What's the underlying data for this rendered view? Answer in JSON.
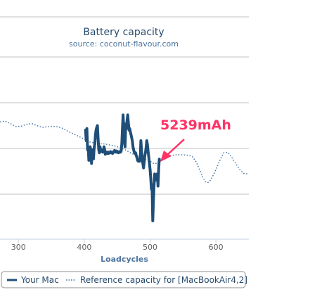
{
  "chart_data": {
    "type": "line",
    "title": "Battery capacity",
    "subtitle": "source: coconut-flavour.com",
    "xlabel": "Loadcycles",
    "ylabel": "",
    "xlim": [
      272,
      650
    ],
    "x_ticks": [
      300,
      400,
      500,
      600
    ],
    "grid": true,
    "legend_placement": "bottom",
    "series": [
      {
        "name": "Your Mac",
        "style": "solid",
        "color": "#1f4e79",
        "points": [
          [
            402,
            5335
          ],
          [
            403,
            5300
          ],
          [
            404,
            5340
          ],
          [
            405,
            5270
          ],
          [
            406,
            5280
          ],
          [
            407,
            5235
          ],
          [
            408,
            5250
          ],
          [
            409,
            5280
          ],
          [
            410,
            5265
          ],
          [
            411,
            5225
          ],
          [
            412,
            5270
          ],
          [
            413,
            5255
          ],
          [
            414,
            5240
          ],
          [
            415,
            5275
          ],
          [
            416,
            5290
          ],
          [
            417,
            5320
          ],
          [
            418,
            5335
          ],
          [
            419,
            5345
          ],
          [
            420,
            5350
          ],
          [
            421,
            5310
          ],
          [
            422,
            5270
          ],
          [
            423,
            5260
          ],
          [
            424,
            5280
          ],
          [
            425,
            5265
          ],
          [
            426,
            5270
          ],
          [
            427,
            5268
          ],
          [
            428,
            5262
          ],
          [
            429,
            5266
          ],
          [
            430,
            5280
          ],
          [
            431,
            5270
          ],
          [
            432,
            5255
          ],
          [
            433,
            5260
          ],
          [
            434,
            5262
          ],
          [
            435,
            5258
          ],
          [
            436,
            5262
          ],
          [
            437,
            5258
          ],
          [
            438,
            5262
          ],
          [
            439,
            5260
          ],
          [
            440,
            5264
          ],
          [
            441,
            5260
          ],
          [
            442,
            5262
          ],
          [
            443,
            5258
          ],
          [
            444,
            5262
          ],
          [
            445,
            5262
          ],
          [
            446,
            5268
          ],
          [
            447,
            5264
          ],
          [
            448,
            5262
          ],
          [
            449,
            5266
          ],
          [
            450,
            5262
          ],
          [
            451,
            5264
          ],
          [
            452,
            5260
          ],
          [
            453,
            5262
          ],
          [
            454,
            5264
          ],
          [
            455,
            5262
          ],
          [
            456,
            5265
          ],
          [
            457,
            5290
          ],
          [
            458,
            5340
          ],
          [
            459,
            5385
          ],
          [
            460,
            5340
          ],
          [
            461,
            5300
          ],
          [
            462,
            5280
          ],
          [
            463,
            5355
          ],
          [
            464,
            5340
          ],
          [
            465,
            5365
          ],
          [
            466,
            5385
          ],
          [
            467,
            5360
          ],
          [
            468,
            5335
          ],
          [
            469,
            5340
          ],
          [
            470,
            5330
          ],
          [
            471,
            5320
          ],
          [
            472,
            5310
          ],
          [
            473,
            5300
          ],
          [
            474,
            5280
          ],
          [
            475,
            5270
          ],
          [
            476,
            5262
          ],
          [
            477,
            5258
          ],
          [
            478,
            5260
          ],
          [
            479,
            5250
          ],
          [
            480,
            5245
          ],
          [
            481,
            5235
          ],
          [
            482,
            5232
          ],
          [
            483,
            5238
          ],
          [
            484,
            5232
          ],
          [
            485,
            5240
          ],
          [
            486,
            5300
          ],
          [
            487,
            5270
          ],
          [
            488,
            5235
          ],
          [
            489,
            5225
          ],
          [
            490,
            5210
          ],
          [
            491,
            5228
          ],
          [
            492,
            5250
          ],
          [
            493,
            5262
          ],
          [
            494,
            5278
          ],
          [
            495,
            5300
          ],
          [
            496,
            5285
          ],
          [
            497,
            5265
          ],
          [
            498,
            5245
          ],
          [
            499,
            5225
          ],
          [
            500,
            5205
          ],
          [
            501,
            5175
          ],
          [
            502,
            5140
          ],
          [
            503,
            5155
          ],
          [
            504,
            5035
          ],
          [
            505,
            5100
          ],
          [
            506,
            5150
          ],
          [
            507,
            5190
          ],
          [
            508,
            5185
          ],
          [
            509,
            5170
          ],
          [
            510,
            5180
          ],
          [
            511,
            5190
          ],
          [
            512,
            5150
          ],
          [
            513,
            5205
          ],
          [
            514,
            5239
          ]
        ]
      },
      {
        "name": "Reference capacity for [MacBookAir4,2]",
        "style": "dotted",
        "color": "#4572a7",
        "points": [
          [
            272,
            5362
          ],
          [
            280,
            5365
          ],
          [
            288,
            5356
          ],
          [
            296,
            5347
          ],
          [
            304,
            5348
          ],
          [
            312,
            5354
          ],
          [
            320,
            5357
          ],
          [
            328,
            5350
          ],
          [
            336,
            5344
          ],
          [
            344,
            5346
          ],
          [
            352,
            5348
          ],
          [
            360,
            5346
          ],
          [
            368,
            5340
          ],
          [
            376,
            5330
          ],
          [
            384,
            5322
          ],
          [
            392,
            5314
          ],
          [
            400,
            5305
          ],
          [
            408,
            5296
          ],
          [
            416,
            5292
          ],
          [
            424,
            5290
          ],
          [
            432,
            5289
          ],
          [
            440,
            5285
          ],
          [
            448,
            5282
          ],
          [
            456,
            5276
          ],
          [
            464,
            5268
          ],
          [
            472,
            5258
          ],
          [
            480,
            5250
          ],
          [
            488,
            5242
          ],
          [
            496,
            5235
          ],
          [
            500,
            5232
          ],
          [
            506,
            5224
          ],
          [
            512,
            5226
          ],
          [
            518,
            5238
          ],
          [
            526,
            5248
          ],
          [
            534,
            5252
          ],
          [
            542,
            5254
          ],
          [
            550,
            5253
          ],
          [
            558,
            5252
          ],
          [
            564,
            5248
          ],
          [
            570,
            5230
          ],
          [
            576,
            5200
          ],
          [
            580,
            5180
          ],
          [
            584,
            5164
          ],
          [
            588,
            5162
          ],
          [
            592,
            5170
          ],
          [
            598,
            5195
          ],
          [
            604,
            5225
          ],
          [
            608,
            5245
          ],
          [
            612,
            5260
          ],
          [
            618,
            5262
          ],
          [
            624,
            5245
          ],
          [
            630,
            5225
          ],
          [
            636,
            5205
          ],
          [
            642,
            5192
          ],
          [
            650,
            5190
          ]
        ]
      }
    ],
    "annotations": [
      {
        "text": "5239mAh",
        "x": 514,
        "y": 5239,
        "color": "#ff3366"
      }
    ]
  }
}
